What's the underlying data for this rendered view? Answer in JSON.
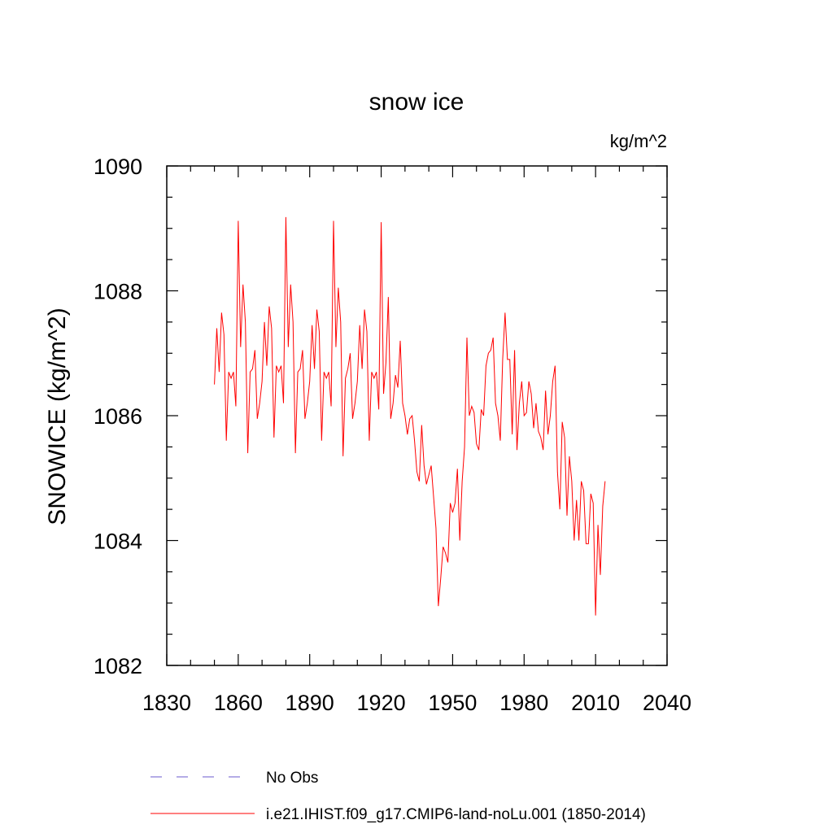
{
  "chart_data": {
    "type": "line",
    "title": "snow ice",
    "units": "kg/m^2",
    "ylabel": "SNOWICE  (kg/m^2)",
    "xlabel": "",
    "xlim": [
      1830,
      2040
    ],
    "ylim": [
      1082,
      1090
    ],
    "xticks": [
      1830,
      1860,
      1890,
      1920,
      1950,
      1980,
      2010,
      2040
    ],
    "yticks": [
      1082,
      1084,
      1086,
      1088,
      1090
    ],
    "grid": false,
    "legend_placement": "bottom",
    "series": [
      {
        "name": "i.e21.IHIST.f09_g17.CMIP6-land-noLu.001 (1850-2014)",
        "color": "#ff0000",
        "x": [
          1850,
          1851,
          1852,
          1853,
          1854,
          1855,
          1856,
          1857,
          1858,
          1859,
          1860,
          1861,
          1862,
          1863,
          1864,
          1865,
          1866,
          1867,
          1868,
          1869,
          1870,
          1871,
          1872,
          1873,
          1874,
          1875,
          1876,
          1877,
          1878,
          1879,
          1880,
          1881,
          1882,
          1883,
          1884,
          1885,
          1886,
          1887,
          1888,
          1889,
          1890,
          1891,
          1892,
          1893,
          1894,
          1895,
          1896,
          1897,
          1898,
          1899,
          1900,
          1901,
          1902,
          1903,
          1904,
          1905,
          1906,
          1907,
          1908,
          1909,
          1910,
          1911,
          1912,
          1913,
          1914,
          1915,
          1916,
          1917,
          1918,
          1919,
          1920,
          1921,
          1922,
          1923,
          1924,
          1925,
          1926,
          1927,
          1928,
          1929,
          1930,
          1931,
          1932,
          1933,
          1934,
          1935,
          1936,
          1937,
          1938,
          1939,
          1940,
          1941,
          1942,
          1943,
          1944,
          1945,
          1946,
          1947,
          1948,
          1949,
          1950,
          1951,
          1952,
          1953,
          1954,
          1955,
          1956,
          1957,
          1958,
          1959,
          1960,
          1961,
          1962,
          1963,
          1964,
          1965,
          1966,
          1967,
          1968,
          1969,
          1970,
          1971,
          1972,
          1973,
          1974,
          1975,
          1976,
          1977,
          1978,
          1979,
          1980,
          1981,
          1982,
          1983,
          1984,
          1985,
          1986,
          1987,
          1988,
          1989,
          1990,
          1991,
          1992,
          1993,
          1994,
          1995,
          1996,
          1997,
          1998,
          1999,
          2000,
          2001,
          2002,
          2003,
          2004,
          2005,
          2006,
          2007,
          2008,
          2009,
          2010,
          2011,
          2012,
          2013,
          2014
        ],
        "values": [
          1086.5,
          1087.4,
          1086.7,
          1087.65,
          1087.3,
          1085.6,
          1086.7,
          1086.6,
          1086.7,
          1086.15,
          1089.12,
          1087.1,
          1088.1,
          1087.5,
          1085.4,
          1086.7,
          1086.75,
          1087.05,
          1085.95,
          1086.2,
          1086.55,
          1087.5,
          1086.8,
          1087.75,
          1087.4,
          1085.65,
          1086.8,
          1086.7,
          1086.8,
          1086.2,
          1089.18,
          1087.1,
          1088.1,
          1087.5,
          1085.4,
          1086.7,
          1086.75,
          1087.05,
          1085.95,
          1086.2,
          1086.55,
          1087.45,
          1086.75,
          1087.7,
          1087.35,
          1085.6,
          1086.7,
          1086.6,
          1086.7,
          1086.15,
          1089.12,
          1087.1,
          1088.05,
          1087.5,
          1085.35,
          1086.6,
          1086.75,
          1087.0,
          1085.95,
          1086.2,
          1086.55,
          1087.45,
          1086.75,
          1087.7,
          1087.35,
          1085.6,
          1086.7,
          1086.6,
          1086.7,
          1086.1,
          1089.1,
          1086.35,
          1086.85,
          1087.9,
          1085.95,
          1086.2,
          1086.65,
          1086.45,
          1087.2,
          1086.2,
          1086.0,
          1085.7,
          1085.95,
          1086.0,
          1085.6,
          1085.1,
          1084.95,
          1085.85,
          1085.2,
          1084.9,
          1085.05,
          1085.2,
          1084.7,
          1084.2,
          1082.95,
          1083.4,
          1083.9,
          1083.8,
          1083.65,
          1084.6,
          1084.45,
          1084.6,
          1085.15,
          1084.0,
          1084.95,
          1085.5,
          1087.25,
          1086.0,
          1086.15,
          1086.05,
          1085.55,
          1085.45,
          1086.1,
          1086.0,
          1086.8,
          1087.0,
          1087.05,
          1087.25,
          1086.2,
          1086.0,
          1085.6,
          1086.9,
          1087.65,
          1086.9,
          1086.9,
          1085.7,
          1087.05,
          1085.45,
          1086.2,
          1086.55,
          1086.0,
          1086.05,
          1086.55,
          1086.35,
          1085.8,
          1086.2,
          1085.75,
          1085.65,
          1085.45,
          1086.4,
          1085.7,
          1086.0,
          1086.55,
          1086.8,
          1085.1,
          1084.5,
          1085.9,
          1085.65,
          1084.4,
          1085.35,
          1084.95,
          1084.0,
          1084.65,
          1084.0,
          1084.95,
          1084.8,
          1083.95,
          1083.95,
          1084.75,
          1084.6,
          1082.8,
          1084.25,
          1083.45,
          1084.55,
          1084.95
        ]
      }
    ],
    "legend": [
      {
        "label": "No Obs",
        "color": "#6a5acd",
        "style": "dashed"
      },
      {
        "label": "i.e21.IHIST.f09_g17.CMIP6-land-noLu.001 (1850-2014)",
        "color": "#ff0000",
        "style": "solid"
      }
    ]
  }
}
